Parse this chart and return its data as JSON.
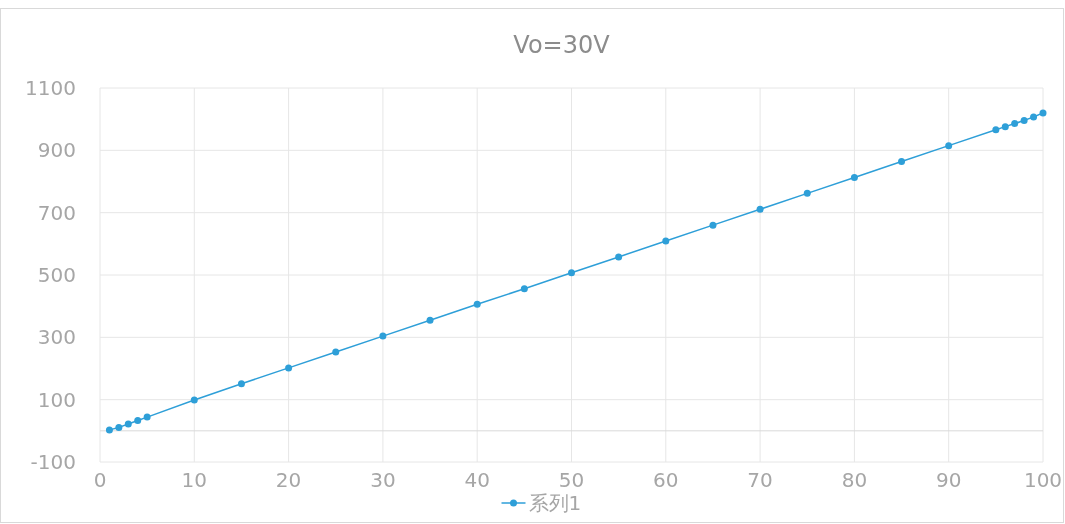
{
  "chart_data": {
    "type": "line",
    "title": "Vo=30V",
    "x": [
      1,
      2,
      3,
      4,
      5,
      10,
      15,
      20,
      25,
      30,
      35,
      40,
      45,
      50,
      55,
      60,
      65,
      70,
      75,
      80,
      85,
      90,
      95,
      96,
      97,
      98,
      99,
      100
    ],
    "series": [
      {
        "name": "系列1",
        "color": "#2e9fd8",
        "values": [
          3,
          11,
          22,
          33,
          44,
          99,
          151,
          202,
          253,
          304,
          355,
          406,
          456,
          507,
          558,
          609,
          660,
          711,
          762,
          813,
          864,
          915,
          966,
          976,
          986,
          996,
          1007,
          1020
        ]
      }
    ],
    "xlim": [
      0,
      100
    ],
    "xticks": [
      0,
      10,
      20,
      30,
      40,
      50,
      60,
      70,
      80,
      90,
      100
    ],
    "ylim": [
      -100,
      1100
    ],
    "yticks": [
      -100,
      100,
      300,
      500,
      700,
      900,
      1100
    ],
    "grid": true,
    "legend": "bottom",
    "marker": "circle",
    "line_style": "solid"
  }
}
